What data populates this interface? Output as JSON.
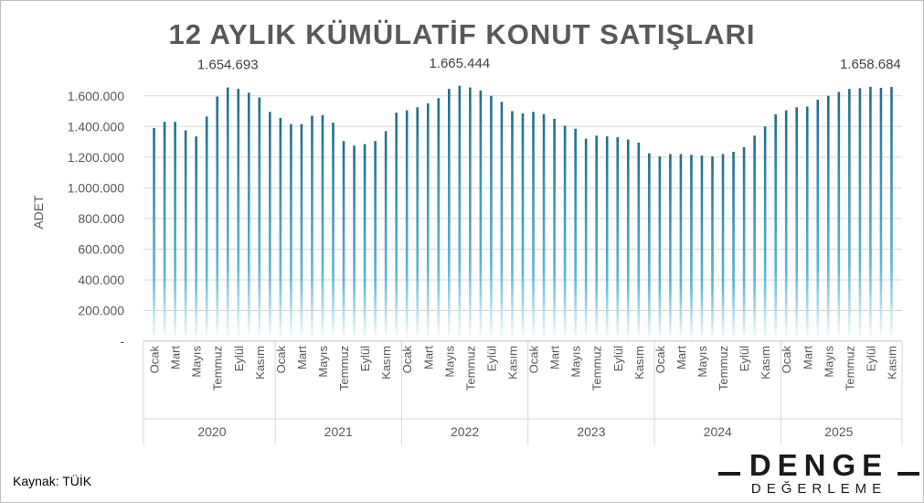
{
  "chart_data": {
    "type": "bar",
    "title": "12 AYLIK KÜMÜLATİF KONUT SATIŞLARI",
    "ylabel": "ADET",
    "xlabel": "",
    "ylim": [
      0,
      1700000
    ],
    "y_ticks": [
      0,
      200000,
      400000,
      600000,
      800000,
      1000000,
      1200000,
      1400000,
      1600000
    ],
    "y_tick_labels": [
      "-",
      "200.000",
      "400.000",
      "600.000",
      "800.000",
      "1.000.000",
      "1.200.000",
      "1.400.000",
      "1.600.000"
    ],
    "grid": true,
    "years": [
      "2020",
      "2021",
      "2022",
      "2023",
      "2024",
      "2025"
    ],
    "month_labels": [
      "Ocak",
      "",
      "Mart",
      "",
      "Mayıs",
      "",
      "Temmuz",
      "",
      "Eylül",
      "",
      "Kasım",
      ""
    ],
    "months_per_year": [
      12,
      12,
      12,
      12,
      12,
      11
    ],
    "values": [
      1390000,
      1430000,
      1430000,
      1375000,
      1335000,
      1465000,
      1595000,
      1654693,
      1645000,
      1620000,
      1590000,
      1495000,
      1455000,
      1415000,
      1415000,
      1470000,
      1475000,
      1425000,
      1305000,
      1275000,
      1285000,
      1305000,
      1370000,
      1490000,
      1505000,
      1525000,
      1550000,
      1585000,
      1645000,
      1665444,
      1655000,
      1635000,
      1600000,
      1560000,
      1500000,
      1485000,
      1495000,
      1480000,
      1450000,
      1405000,
      1385000,
      1320000,
      1340000,
      1335000,
      1330000,
      1315000,
      1295000,
      1225000,
      1205000,
      1220000,
      1220000,
      1215000,
      1210000,
      1205000,
      1220000,
      1235000,
      1265000,
      1340000,
      1400000,
      1480000,
      1505000,
      1525000,
      1530000,
      1575000,
      1600000,
      1625000,
      1645000,
      1650000,
      1658684,
      1652000,
      1658000
    ],
    "data_labels": [
      {
        "index": 7,
        "text": "1.654.693"
      },
      {
        "index": 29,
        "text": "1.665.444"
      },
      {
        "index": 68,
        "text": "1.658.684"
      }
    ],
    "bar_color": "#1f6e8c"
  },
  "source": "Kaynak: TÜİK",
  "logo": {
    "main": "DENGE",
    "sub": "DEĞERLEME"
  }
}
